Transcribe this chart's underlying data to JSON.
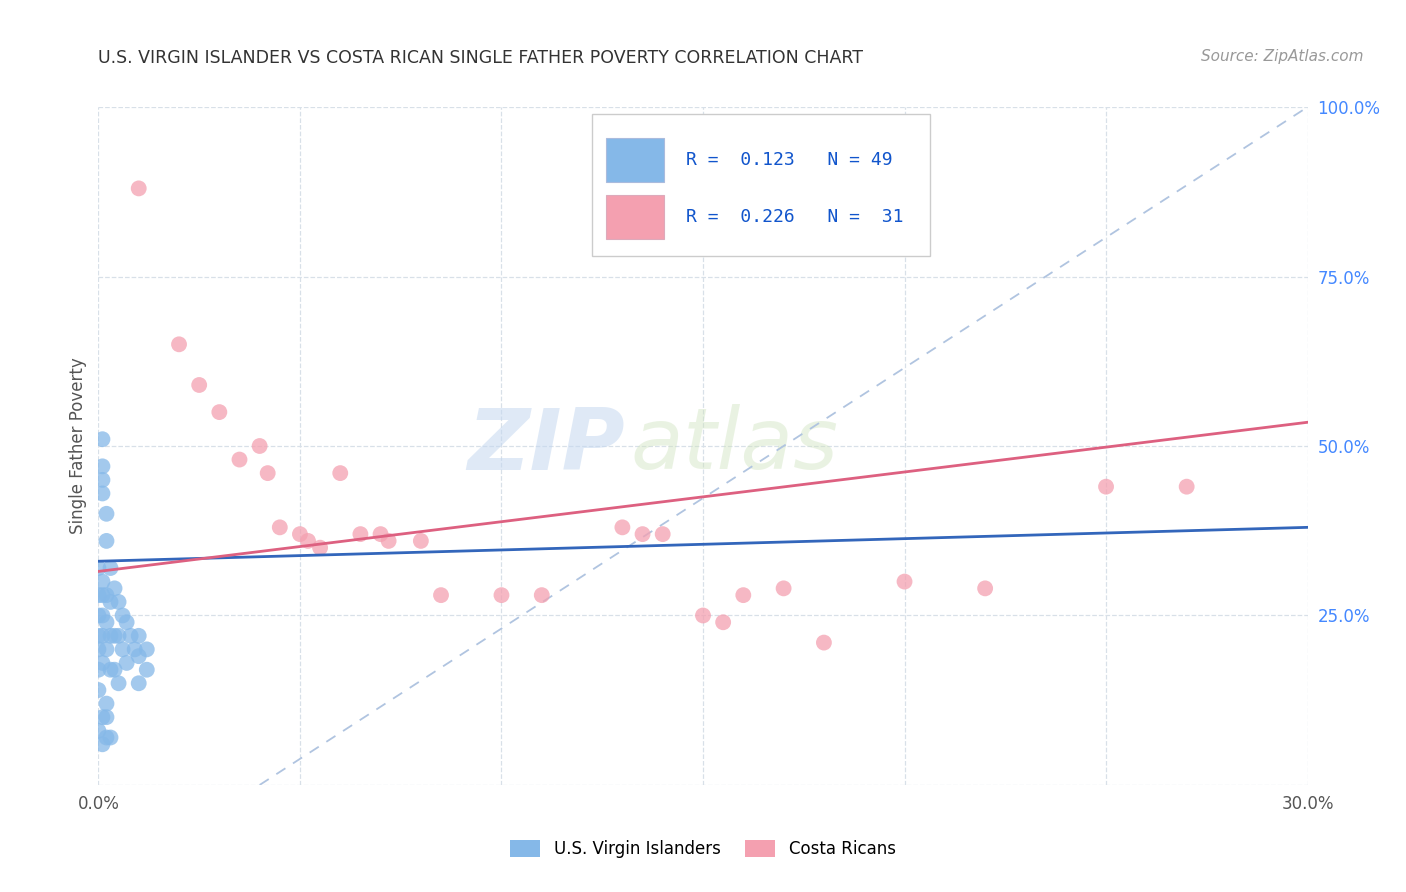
{
  "title": "U.S. VIRGIN ISLANDER VS COSTA RICAN SINGLE FATHER POVERTY CORRELATION CHART",
  "source": "Source: ZipAtlas.com",
  "ylabel": "Single Father Poverty",
  "xlim": [
    0.0,
    0.3
  ],
  "ylim": [
    0.0,
    1.0
  ],
  "xticks": [
    0.0,
    0.05,
    0.1,
    0.15,
    0.2,
    0.25,
    0.3
  ],
  "xticklabels": [
    "0.0%",
    "",
    "",
    "",
    "",
    "",
    "30.0%"
  ],
  "yticks": [
    0.0,
    0.25,
    0.5,
    0.75,
    1.0
  ],
  "yticklabels": [
    "",
    "25.0%",
    "50.0%",
    "75.0%",
    "100.0%"
  ],
  "legend_r1": "R =  0.123",
  "legend_n1": "N = 49",
  "legend_r2": "R =  0.226",
  "legend_n2": "N =  31",
  "color_blue": "#85b8e8",
  "color_pink": "#f4a0b0",
  "color_blue_line": "#3366bb",
  "color_pink_line": "#dd6080",
  "color_diag_line": "#b0c4e0",
  "watermark_zip": "ZIP",
  "watermark_atlas": "atlas",
  "blue_x": [
    0.001,
    0.001,
    0.001,
    0.001,
    0.001,
    0.001,
    0.001,
    0.001,
    0.001,
    0.002,
    0.002,
    0.002,
    0.002,
    0.002,
    0.002,
    0.003,
    0.003,
    0.003,
    0.003,
    0.004,
    0.004,
    0.004,
    0.005,
    0.005,
    0.005,
    0.006,
    0.006,
    0.007,
    0.007,
    0.008,
    0.009,
    0.01,
    0.01,
    0.01,
    0.012,
    0.012,
    0.0,
    0.0,
    0.0,
    0.0,
    0.0,
    0.0,
    0.0,
    0.0,
    0.001,
    0.001,
    0.002,
    0.002,
    0.003
  ],
  "blue_y": [
    0.51,
    0.47,
    0.45,
    0.43,
    0.3,
    0.28,
    0.25,
    0.22,
    0.18,
    0.4,
    0.36,
    0.28,
    0.24,
    0.2,
    0.12,
    0.32,
    0.27,
    0.22,
    0.17,
    0.29,
    0.22,
    0.17,
    0.27,
    0.22,
    0.15,
    0.25,
    0.2,
    0.24,
    0.18,
    0.22,
    0.2,
    0.22,
    0.19,
    0.15,
    0.2,
    0.17,
    0.32,
    0.28,
    0.25,
    0.22,
    0.2,
    0.17,
    0.14,
    0.08,
    0.1,
    0.06,
    0.1,
    0.07,
    0.07
  ],
  "pink_x": [
    0.01,
    0.02,
    0.025,
    0.03,
    0.035,
    0.04,
    0.042,
    0.045,
    0.05,
    0.052,
    0.055,
    0.06,
    0.065,
    0.07,
    0.072,
    0.08,
    0.085,
    0.1,
    0.11,
    0.13,
    0.135,
    0.14,
    0.15,
    0.155,
    0.16,
    0.17,
    0.18,
    0.2,
    0.22,
    0.25,
    0.27
  ],
  "pink_y": [
    0.88,
    0.65,
    0.59,
    0.55,
    0.48,
    0.5,
    0.46,
    0.38,
    0.37,
    0.36,
    0.35,
    0.46,
    0.37,
    0.37,
    0.36,
    0.36,
    0.28,
    0.28,
    0.28,
    0.38,
    0.37,
    0.37,
    0.25,
    0.24,
    0.28,
    0.29,
    0.21,
    0.3,
    0.29,
    0.44,
    0.44
  ],
  "blue_line_x": [
    0.0,
    0.3
  ],
  "blue_line_y": [
    0.33,
    0.38
  ],
  "pink_line_x": [
    0.0,
    0.3
  ],
  "pink_line_y": [
    0.315,
    0.535
  ],
  "diag_line_x": [
    0.04,
    0.3
  ],
  "diag_line_y": [
    0.0,
    1.0
  ],
  "background_color": "#ffffff",
  "grid_color": "#d8e0e8"
}
